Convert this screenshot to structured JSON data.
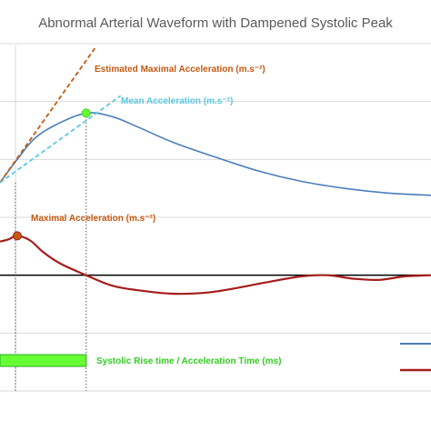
{
  "chart_data": {
    "type": "line",
    "title": "Abnormal Arterial Waveform with Dampened Systolic Peak",
    "x_unit": "ms",
    "xlim": [
      0,
      100
    ],
    "ylim": [
      -1,
      2
    ],
    "grid": true,
    "legend_position": "bottom-right",
    "series": [
      {
        "name": "",
        "color": "#4a7ebb",
        "points": [
          [
            0,
            0.8
          ],
          [
            4,
            1.0
          ],
          [
            8,
            1.18
          ],
          [
            13,
            1.3
          ],
          [
            20,
            1.4
          ],
          [
            26,
            1.37
          ],
          [
            32,
            1.28
          ],
          [
            40,
            1.15
          ],
          [
            50,
            1.02
          ],
          [
            60,
            0.9
          ],
          [
            70,
            0.81
          ],
          [
            80,
            0.75
          ],
          [
            90,
            0.71
          ],
          [
            100,
            0.69
          ]
        ]
      },
      {
        "name": "",
        "color": "#a51c1c",
        "points": [
          [
            0,
            0.29
          ],
          [
            2,
            0.31
          ],
          [
            4,
            0.34
          ],
          [
            7,
            0.3
          ],
          [
            10,
            0.2
          ],
          [
            14,
            0.1
          ],
          [
            20,
            0.0
          ],
          [
            26,
            -0.09
          ],
          [
            32,
            -0.13
          ],
          [
            40,
            -0.16
          ],
          [
            48,
            -0.15
          ],
          [
            55,
            -0.11
          ],
          [
            62,
            -0.06
          ],
          [
            70,
            -0.01
          ],
          [
            76,
            0.0
          ],
          [
            82,
            -0.03
          ],
          [
            88,
            -0.04
          ],
          [
            94,
            -0.01
          ],
          [
            100,
            0.0
          ]
        ]
      }
    ],
    "tangents": [
      {
        "label": "Estimated Maximal Acceleration (m.s⁻²)",
        "color": "#c55a11",
        "from": [
          0,
          0.8
        ],
        "to": [
          22,
          1.96
        ]
      },
      {
        "label": "Mean Acceleration (m.s⁻²)",
        "color": "#5bc8e0",
        "from": [
          0,
          0.8
        ],
        "to": [
          28,
          1.55
        ]
      }
    ],
    "markers": [
      {
        "label": "Maximal Acceleration (m.s⁻²)",
        "color": "#c55a11",
        "x": 4,
        "y": 0.34
      },
      {
        "label": "",
        "color": "#66ff33",
        "x": 20,
        "y": 1.4
      }
    ],
    "rise_time": {
      "label": "Systolic Rise time / Acceleration Time (ms)",
      "color": "#66ff33",
      "x_start": 0,
      "x_end": 20
    },
    "colors": {
      "grid": "#d9d9d9",
      "axis": "#000000",
      "text": "#595959"
    }
  }
}
